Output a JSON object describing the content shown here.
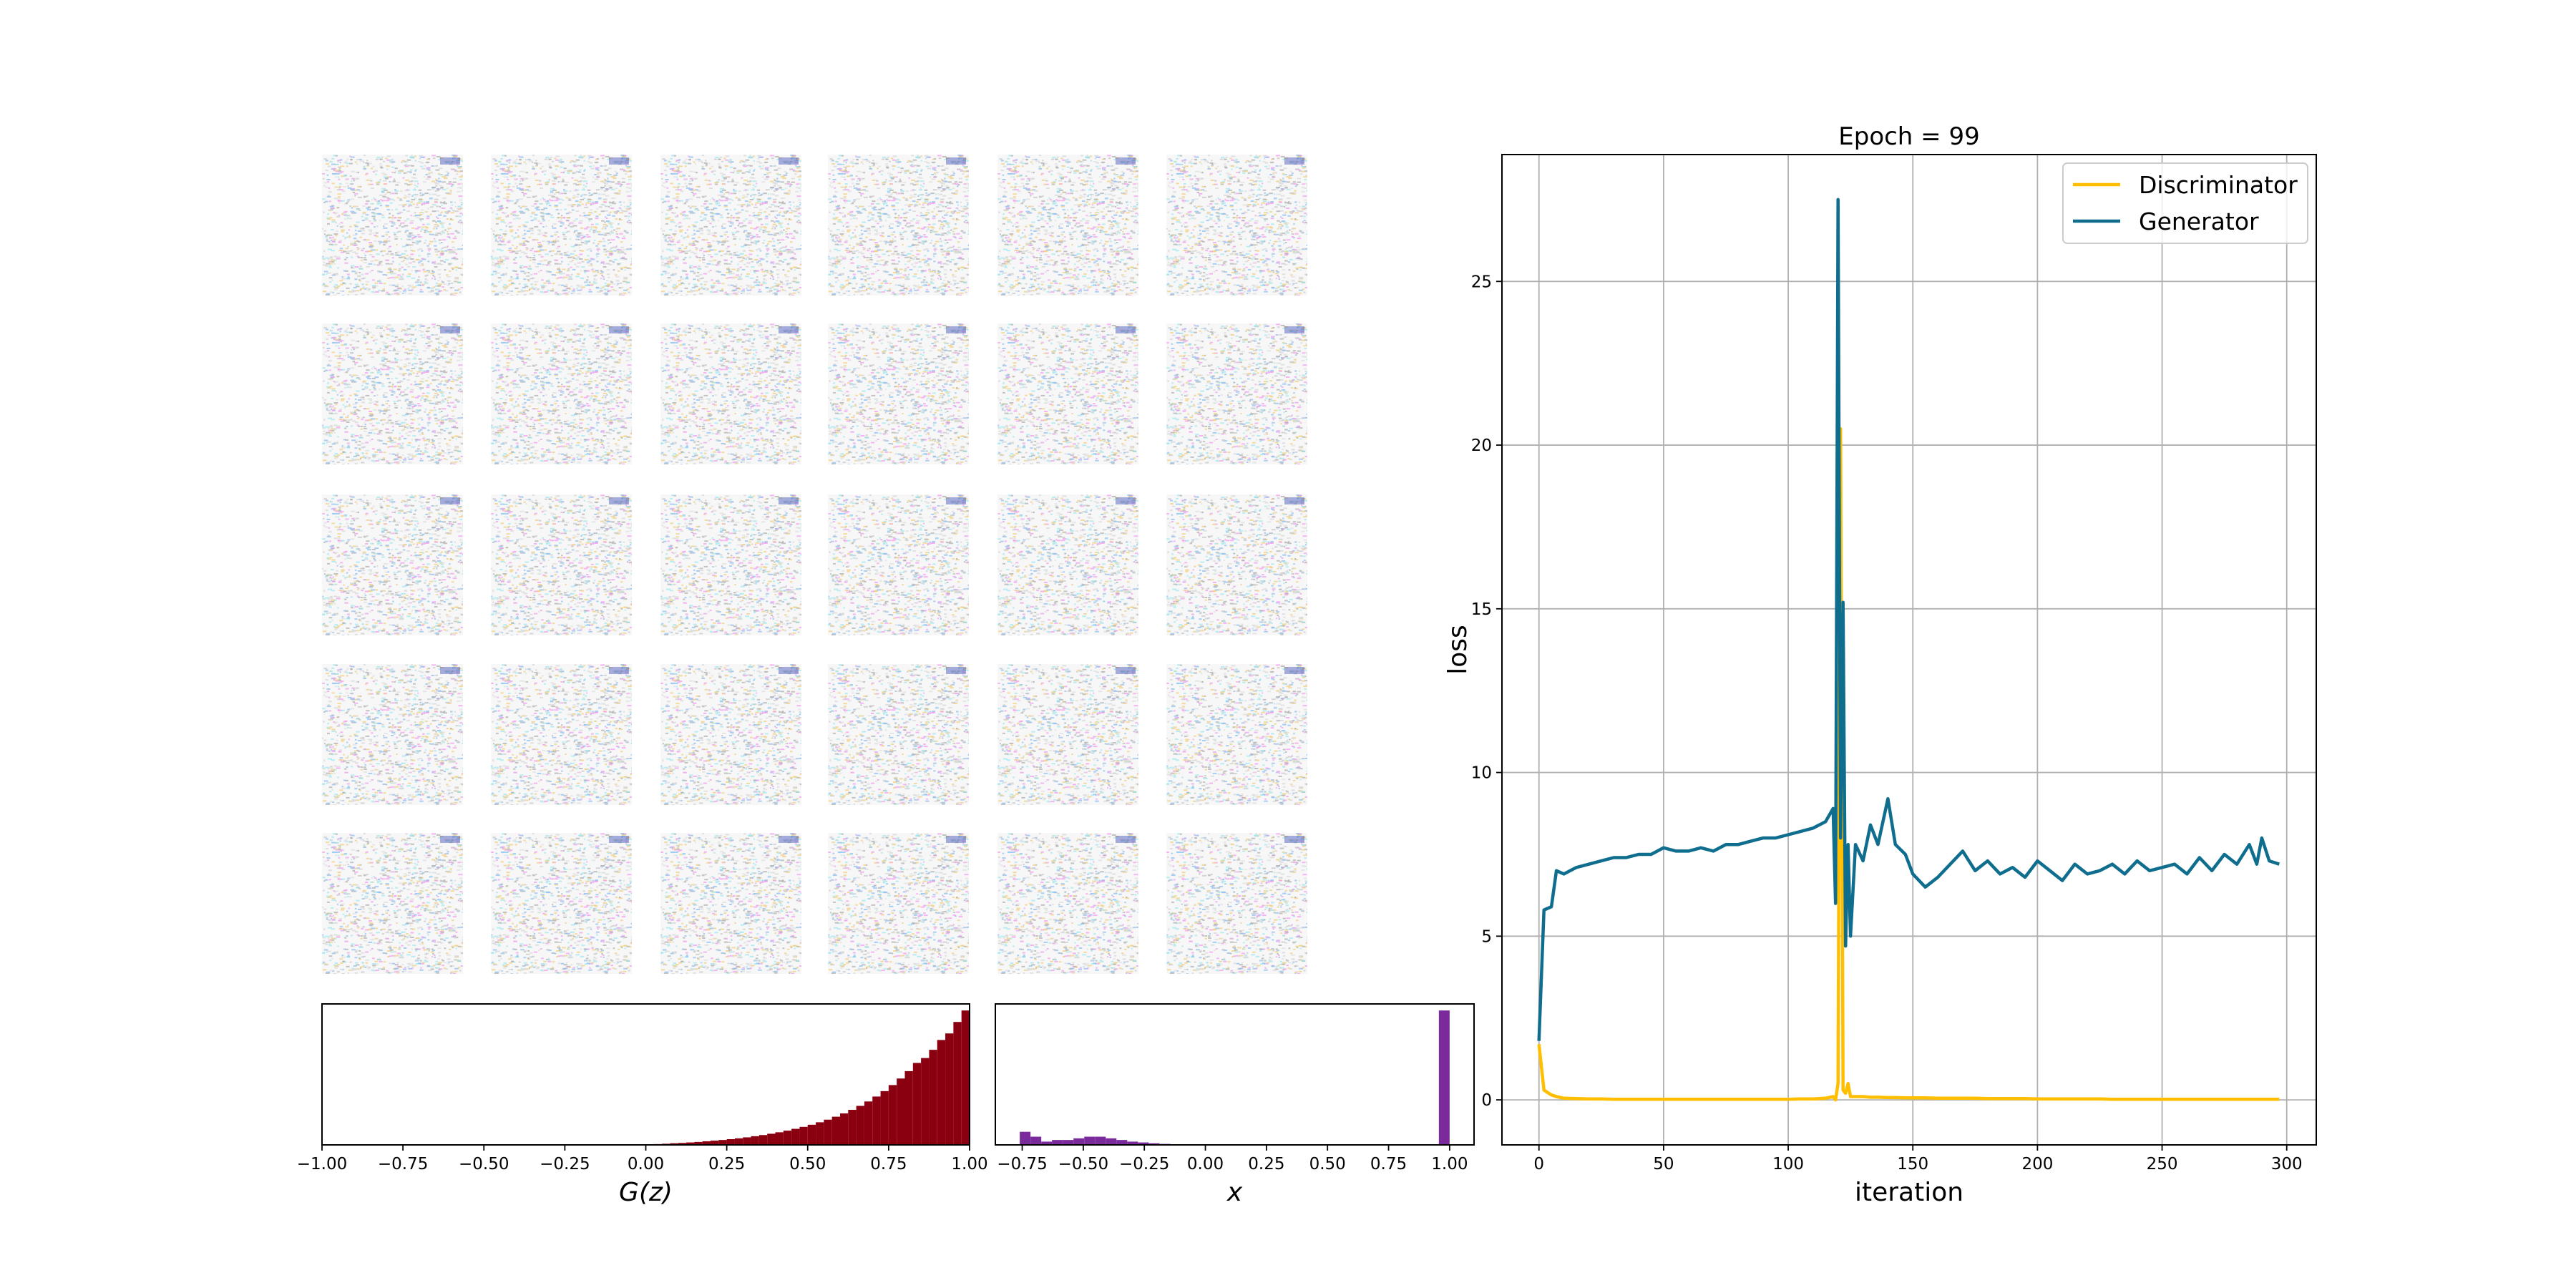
{
  "chart_data": [
    {
      "type": "line",
      "title": "Epoch = 99",
      "xlabel": "iteration",
      "ylabel": "loss",
      "x": [
        0,
        2,
        5,
        7,
        10,
        15,
        20,
        25,
        30,
        35,
        40,
        45,
        50,
        55,
        60,
        65,
        70,
        75,
        80,
        85,
        90,
        95,
        100,
        105,
        110,
        115,
        118,
        119,
        120,
        121,
        122,
        123,
        124,
        125,
        127,
        130,
        133,
        136,
        140,
        143,
        147,
        150,
        155,
        160,
        165,
        170,
        175,
        180,
        185,
        190,
        195,
        200,
        205,
        210,
        215,
        220,
        225,
        230,
        235,
        240,
        245,
        250,
        255,
        260,
        265,
        270,
        275,
        280,
        285,
        288,
        290,
        293,
        297
      ],
      "series": [
        {
          "name": "Discriminator",
          "color": "#ffbf00",
          "values": [
            1.7,
            0.3,
            0.15,
            0.1,
            0.05,
            0.04,
            0.03,
            0.03,
            0.02,
            0.02,
            0.02,
            0.02,
            0.02,
            0.02,
            0.02,
            0.02,
            0.02,
            0.02,
            0.02,
            0.02,
            0.02,
            0.02,
            0.02,
            0.03,
            0.03,
            0.05,
            0.1,
            0.0,
            0.5,
            20.5,
            0.3,
            0.2,
            0.5,
            0.1,
            0.1,
            0.1,
            0.08,
            0.08,
            0.07,
            0.07,
            0.06,
            0.06,
            0.06,
            0.05,
            0.05,
            0.05,
            0.05,
            0.04,
            0.04,
            0.04,
            0.04,
            0.03,
            0.03,
            0.03,
            0.03,
            0.03,
            0.03,
            0.02,
            0.02,
            0.02,
            0.02,
            0.02,
            0.02,
            0.02,
            0.02,
            0.02,
            0.02,
            0.02,
            0.02,
            0.02,
            0.02,
            0.02,
            0.02
          ]
        },
        {
          "name": "Generator",
          "color": "#0f6d8e",
          "values": [
            1.8,
            5.8,
            5.9,
            7.0,
            6.9,
            7.1,
            7.2,
            7.3,
            7.4,
            7.4,
            7.5,
            7.5,
            7.7,
            7.6,
            7.6,
            7.7,
            7.6,
            7.8,
            7.8,
            7.9,
            8.0,
            8.0,
            8.1,
            8.2,
            8.3,
            8.5,
            8.9,
            6.0,
            27.5,
            8.0,
            15.2,
            4.7,
            7.8,
            5.0,
            7.8,
            7.3,
            8.4,
            7.8,
            9.2,
            7.8,
            7.5,
            6.9,
            6.5,
            6.8,
            7.2,
            7.6,
            7.0,
            7.3,
            6.9,
            7.1,
            6.8,
            7.3,
            7.0,
            6.7,
            7.2,
            6.9,
            7.0,
            7.2,
            6.9,
            7.3,
            7.0,
            7.1,
            7.2,
            6.9,
            7.4,
            7.0,
            7.5,
            7.2,
            7.8,
            7.2,
            8.0,
            7.3,
            7.2
          ]
        }
      ],
      "xlim": [
        -14.85,
        311.85
      ],
      "ylim": [
        -1.375,
        28.875
      ],
      "xticks": [
        0,
        50,
        100,
        150,
        200,
        250,
        300
      ],
      "yticks": [
        0,
        5,
        10,
        15,
        20,
        25
      ],
      "grid": true,
      "legend": "upper right"
    },
    {
      "type": "histogram",
      "xlabel": "G(z)",
      "color": "#8b0011",
      "bins": [
        0,
        0.025,
        0.05,
        0.075,
        0.1,
        0.125,
        0.15,
        0.175,
        0.2,
        0.225,
        0.25,
        0.275,
        0.3,
        0.325,
        0.35,
        0.375,
        0.4,
        0.425,
        0.45,
        0.475,
        0.5,
        0.525,
        0.55,
        0.575,
        0.6,
        0.625,
        0.65,
        0.675,
        0.7,
        0.725,
        0.75,
        0.775,
        0.8,
        0.825,
        0.85,
        0.875,
        0.9,
        0.925,
        0.95,
        0.975,
        1.0
      ],
      "counts": [
        0.3,
        0.5,
        0.7,
        1.0,
        1.2,
        1.5,
        1.8,
        2.2,
        2.6,
        3.0,
        3.5,
        4.0,
        4.6,
        5.3,
        6.0,
        6.8,
        7.7,
        8.7,
        9.8,
        11,
        12.3,
        13.8,
        15.4,
        17.2,
        19.2,
        21.4,
        23.8,
        26.5,
        29.5,
        32.8,
        36.5,
        40.5,
        45,
        50,
        53,
        58,
        64,
        68,
        75,
        82
      ],
      "xlim": [
        -1,
        1
      ],
      "ylim": [
        0,
        86
      ],
      "xticks": [
        {
          "value": -1,
          "label": "−1.00"
        },
        {
          "value": -0.75,
          "label": "−0.75"
        },
        {
          "value": -0.5,
          "label": "−0.50"
        },
        {
          "value": -0.25,
          "label": "−0.25"
        },
        {
          "value": 0,
          "label": "0.00"
        },
        {
          "value": 0.25,
          "label": "0.25"
        },
        {
          "value": 0.5,
          "label": "0.50"
        },
        {
          "value": 0.75,
          "label": "0.75"
        },
        {
          "value": 1,
          "label": "1.00"
        }
      ]
    },
    {
      "type": "histogram",
      "xlabel": "x",
      "color": "#7b2a9c",
      "bins": [
        -0.76,
        -0.716,
        -0.672,
        -0.628,
        -0.584,
        -0.54,
        -0.496,
        -0.452,
        -0.408,
        -0.364,
        -0.32,
        -0.276,
        -0.232,
        -0.188,
        -0.144,
        -0.1,
        -0.056,
        -0.012,
        0.032,
        0.076,
        0.12,
        0.164,
        0.208,
        0.252,
        0.296,
        0.34,
        0.384,
        0.428,
        0.472,
        0.516,
        0.56,
        0.604,
        0.648,
        0.692,
        0.736,
        0.78,
        0.824,
        0.868,
        0.912,
        0.956,
        1.0
      ],
      "counts": [
        8,
        5,
        2,
        3,
        3,
        4,
        5,
        5,
        4,
        3,
        2,
        1.5,
        1,
        0.6,
        0.3,
        0.1,
        0,
        0,
        0,
        0,
        0,
        0,
        0,
        0,
        0,
        0,
        0,
        0,
        0,
        0,
        0,
        0,
        0,
        0,
        0,
        0,
        0,
        0,
        0,
        82
      ],
      "xlim": [
        -0.86,
        1.1
      ],
      "ylim": [
        0,
        86
      ],
      "xticks": [
        {
          "value": -0.75,
          "label": "−0.75"
        },
        {
          "value": -0.5,
          "label": "−0.50"
        },
        {
          "value": -0.25,
          "label": "−0.25"
        },
        {
          "value": 0,
          "label": "0.00"
        },
        {
          "value": 0.25,
          "label": "0.25"
        },
        {
          "value": 0.5,
          "label": "0.50"
        },
        {
          "value": 0.75,
          "label": "0.75"
        },
        {
          "value": 1,
          "label": "1.00"
        }
      ]
    }
  ]
}
